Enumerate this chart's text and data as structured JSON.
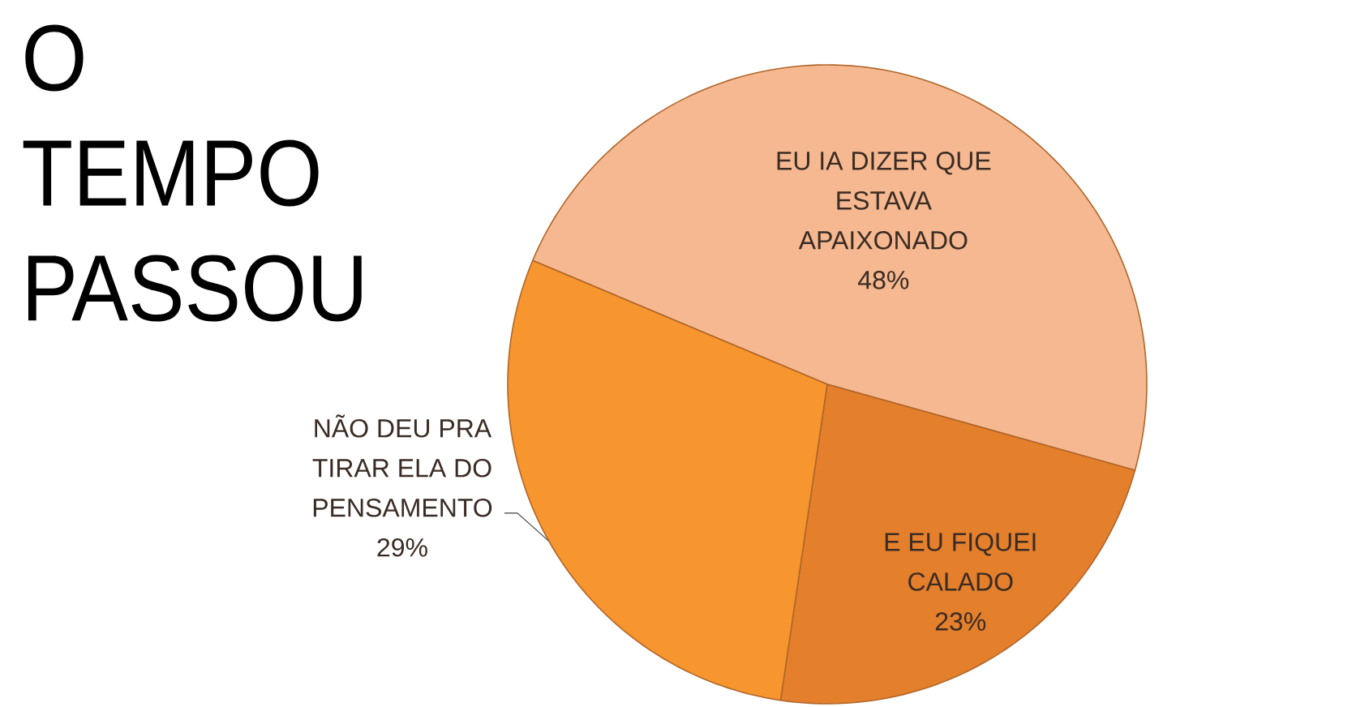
{
  "chart_data": {
    "type": "pie",
    "title": "O TEMPO PASSOU",
    "categories": [
      "EU IA DIZER QUE ESTAVA APAIXONADO",
      "E EU FIQUEI CALADO",
      "NÃO DEU PRA TIRAR ELA DO PENSAMENTO"
    ],
    "values": [
      48,
      23,
      29
    ],
    "value_labels": [
      "48%",
      "23%",
      "29%"
    ],
    "colors": [
      "#f6b890",
      "#e47f2c",
      "#f7952f"
    ]
  }
}
